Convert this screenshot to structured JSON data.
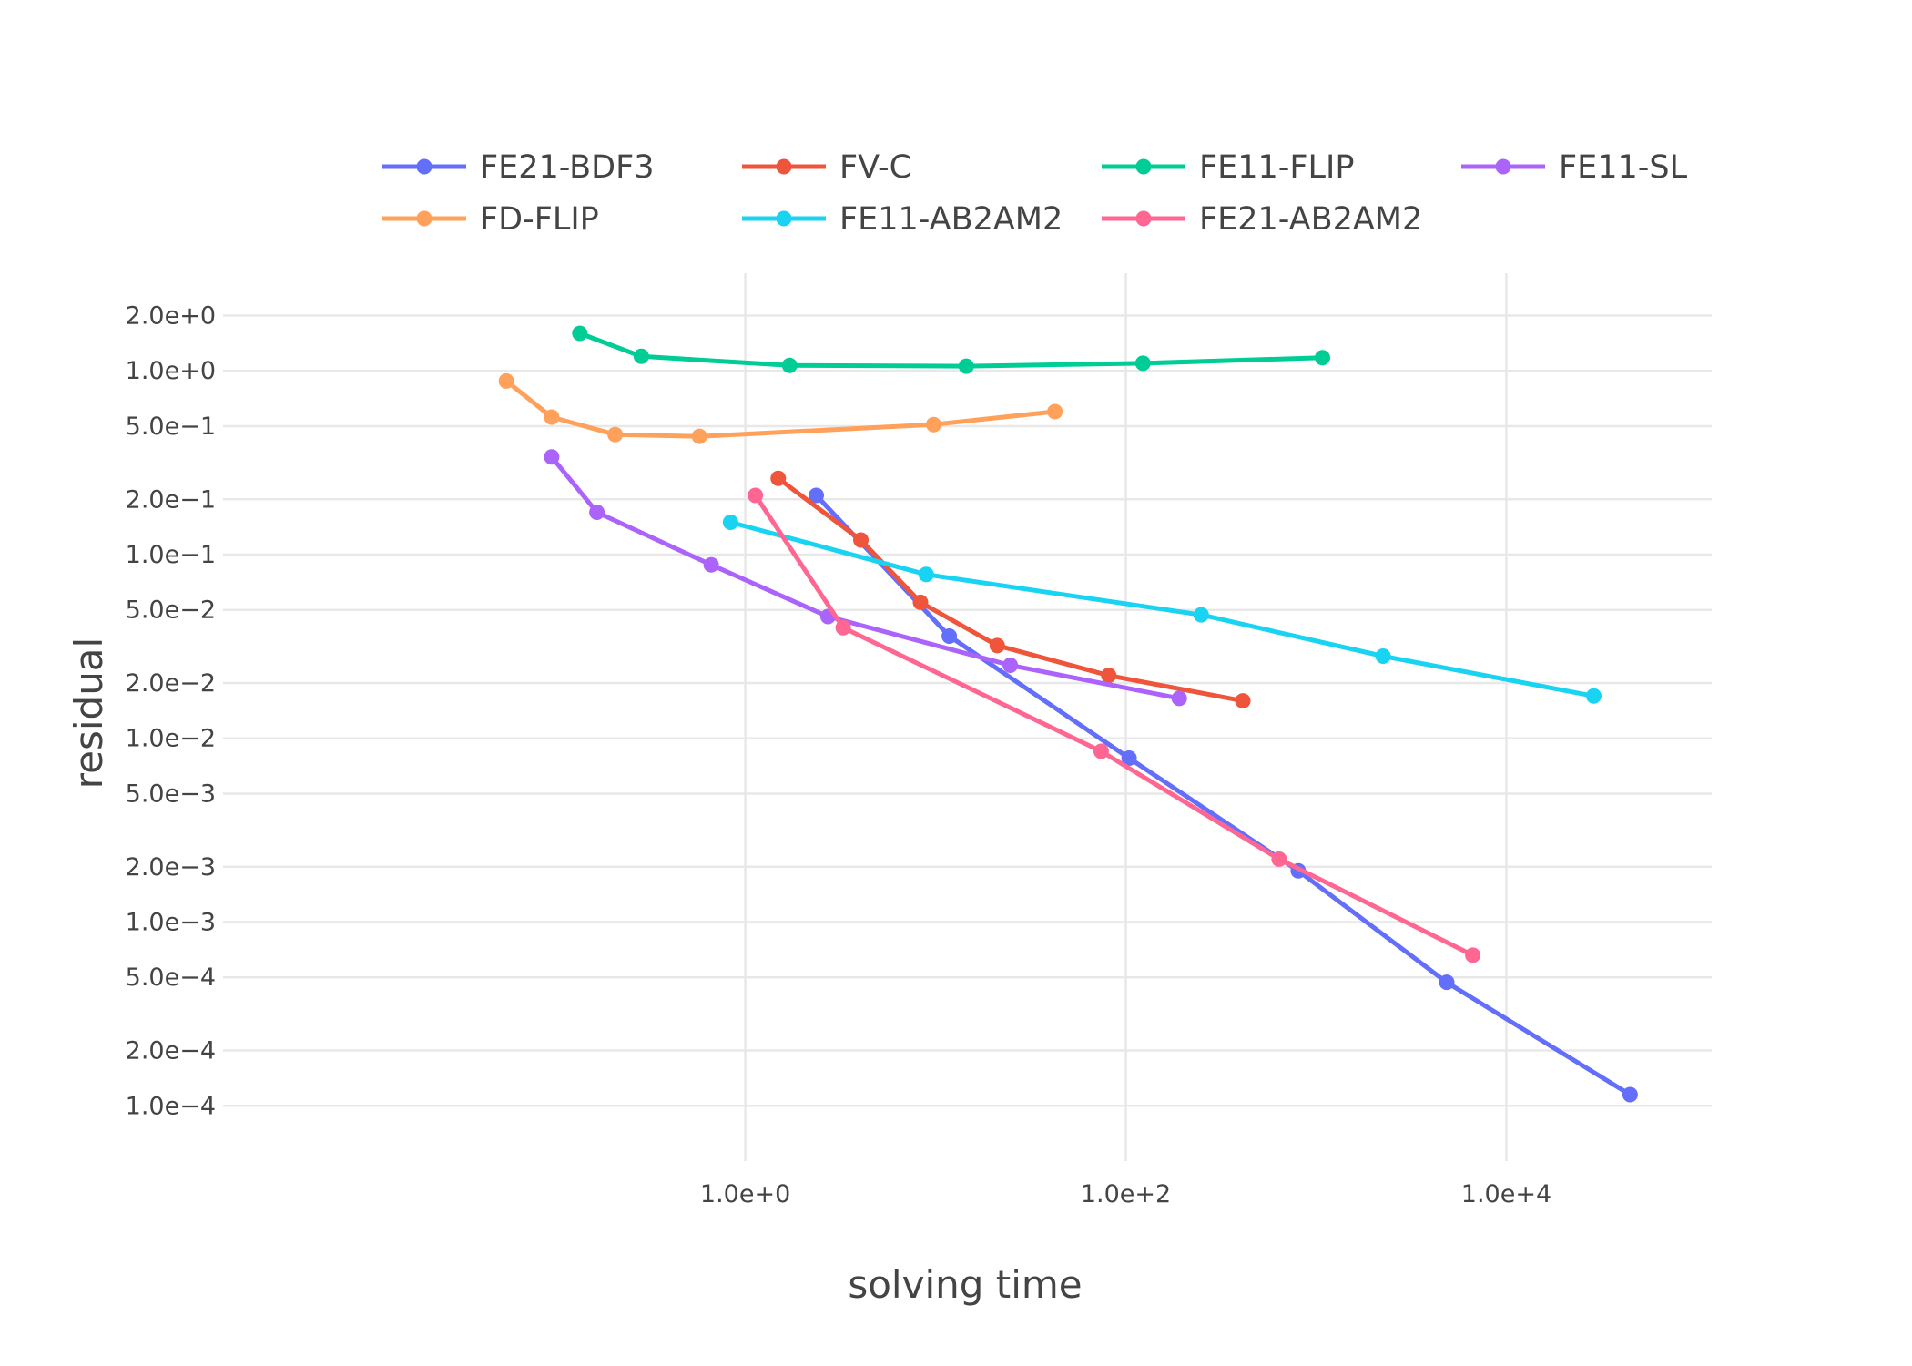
{
  "chart_data": {
    "type": "line",
    "xlabel": "solving time",
    "ylabel": "residual",
    "xscale": "log",
    "yscale": "log",
    "xlim": [
      0.0018,
      120000.0
    ],
    "ylim": [
      5e-05,
      3.4
    ],
    "grid": true,
    "legend_position": "top",
    "x_ticks": [
      {
        "value": 1.0,
        "label": "1.0e+0"
      },
      {
        "value": 100.0,
        "label": "1.0e+2"
      },
      {
        "value": 10000.0,
        "label": "1.0e+4"
      }
    ],
    "y_ticks": [
      {
        "value": 2.0,
        "label": "2.0e+0"
      },
      {
        "value": 1.0,
        "label": "1.0e+0"
      },
      {
        "value": 0.5,
        "label": "5.0e−1"
      },
      {
        "value": 0.2,
        "label": "2.0e−1"
      },
      {
        "value": 0.1,
        "label": "1.0e−1"
      },
      {
        "value": 0.05,
        "label": "5.0e−2"
      },
      {
        "value": 0.02,
        "label": "2.0e−2"
      },
      {
        "value": 0.01,
        "label": "1.0e−2"
      },
      {
        "value": 0.005,
        "label": "5.0e−3"
      },
      {
        "value": 0.002,
        "label": "2.0e−3"
      },
      {
        "value": 0.001,
        "label": "1.0e−3"
      },
      {
        "value": 0.0005,
        "label": "5.0e−4"
      },
      {
        "value": 0.0002,
        "label": "2.0e−4"
      },
      {
        "value": 0.0001,
        "label": "1.0e−4"
      }
    ],
    "series": [
      {
        "name": "FE21-BDF3",
        "color": "#636efa",
        "x": [
          2.36,
          11.8,
          104,
          806,
          4860,
          44700
        ],
        "y": [
          0.21,
          0.036,
          0.0078,
          0.0019,
          0.00047,
          0.000115
        ]
      },
      {
        "name": "FV-C",
        "color": "#ef553b",
        "x": [
          1.49,
          4.05,
          8.33,
          21.1,
          81.3,
          412
        ],
        "y": [
          0.26,
          0.12,
          0.055,
          0.032,
          0.022,
          0.016
        ]
      },
      {
        "name": "FE11-FLIP",
        "color": "#00cc96",
        "x": [
          0.135,
          0.284,
          1.71,
          14.5,
          123,
          1080
        ],
        "y": [
          1.6,
          1.2,
          1.07,
          1.06,
          1.1,
          1.18
        ]
      },
      {
        "name": "FE11-SL",
        "color": "#ab63fa",
        "x": [
          0.096,
          0.166,
          0.662,
          2.72,
          24.7,
          191
        ],
        "y": [
          0.34,
          0.17,
          0.088,
          0.046,
          0.025,
          0.0165
        ]
      },
      {
        "name": "FD-FLIP",
        "color": "#ffa15a",
        "x": [
          0.0555,
          0.096,
          0.207,
          0.574,
          9.77,
          42.4
        ],
        "y": [
          0.88,
          0.56,
          0.45,
          0.44,
          0.51,
          0.6
        ]
      },
      {
        "name": "FE11-AB2AM2",
        "color": "#19d3f3",
        "x": [
          0.836,
          8.93,
          249,
          2250,
          28800
        ],
        "y": [
          0.15,
          0.078,
          0.047,
          0.028,
          0.017
        ]
      },
      {
        "name": "FE21-AB2AM2",
        "color": "#ff6692",
        "x": [
          1.13,
          3.27,
          74.2,
          639,
          6660
        ],
        "y": [
          0.21,
          0.04,
          0.0085,
          0.0022,
          0.00066
        ]
      }
    ]
  }
}
